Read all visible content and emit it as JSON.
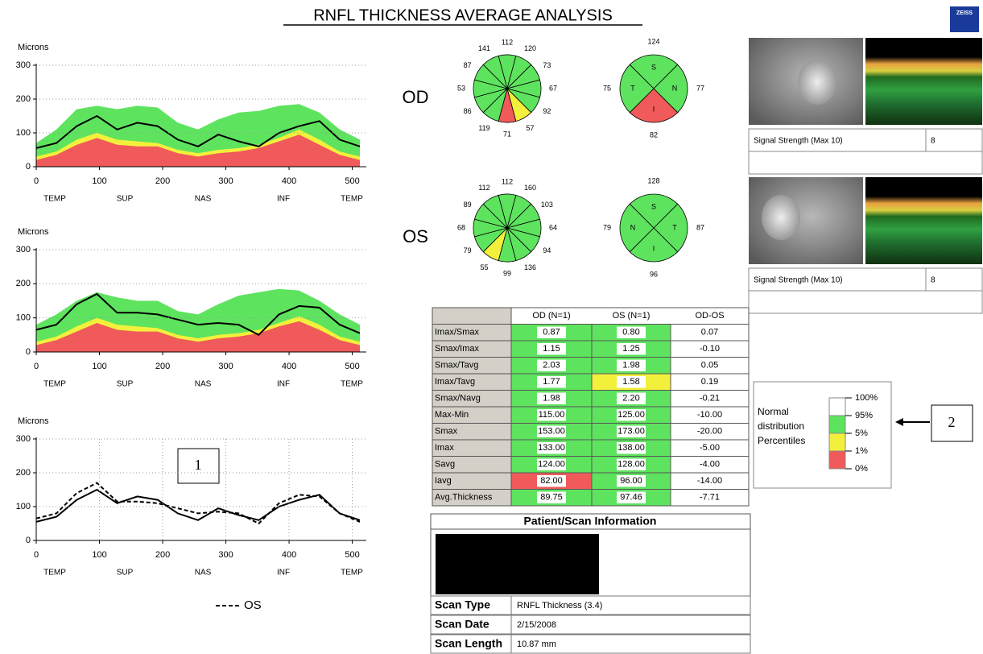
{
  "title": "RNFL THICKNESS AVERAGE ANALYSIS",
  "logo": "ZEISS",
  "chart_data": [
    {
      "type": "line",
      "y_axis_label": "Microns",
      "x": [
        0,
        32,
        64,
        96,
        128,
        160,
        192,
        224,
        256,
        288,
        320,
        352,
        384,
        416,
        448,
        480,
        512
      ],
      "xlim": [
        0,
        512
      ],
      "xticks": [
        0,
        100,
        200,
        300,
        400,
        500
      ],
      "ylim": [
        0,
        300
      ],
      "yticks": [
        0,
        100,
        200,
        300
      ],
      "grid": true,
      "x_regions": [
        "TEMP",
        "SUP",
        "NAS",
        "INF",
        "TEMP"
      ],
      "series": [
        {
          "color": "#5ee35e",
          "area": true,
          "values": [
            70,
            110,
            170,
            180,
            170,
            180,
            175,
            130,
            110,
            140,
            160,
            165,
            180,
            185,
            160,
            110,
            80
          ]
        },
        {
          "color": "#f3f03c",
          "area": true,
          "values": [
            30,
            45,
            80,
            100,
            80,
            75,
            70,
            50,
            40,
            50,
            55,
            65,
            85,
            110,
            80,
            45,
            30
          ]
        },
        {
          "color": "#f05a5a",
          "area": true,
          "values": [
            20,
            35,
            65,
            85,
            65,
            60,
            60,
            40,
            30,
            40,
            45,
            55,
            75,
            95,
            65,
            35,
            20
          ]
        },
        {
          "color": "#000000",
          "values": [
            55,
            70,
            120,
            150,
            110,
            130,
            120,
            80,
            60,
            95,
            75,
            60,
            100,
            120,
            135,
            80,
            60
          ]
        }
      ]
    },
    {
      "type": "line",
      "y_axis_label": "Microns",
      "x": [
        0,
        32,
        64,
        96,
        128,
        160,
        192,
        224,
        256,
        288,
        320,
        352,
        384,
        416,
        448,
        480,
        512
      ],
      "xlim": [
        0,
        512
      ],
      "xticks": [
        0,
        100,
        200,
        300,
        400,
        500
      ],
      "ylim": [
        0,
        300
      ],
      "yticks": [
        0,
        100,
        200,
        300
      ],
      "grid": true,
      "x_regions": [
        "TEMP",
        "SUP",
        "NAS",
        "INF",
        "TEMP"
      ],
      "series": [
        {
          "color": "#5ee35e",
          "area": true,
          "values": [
            80,
            110,
            150,
            175,
            160,
            150,
            150,
            120,
            110,
            140,
            165,
            175,
            185,
            180,
            150,
            110,
            80
          ]
        },
        {
          "color": "#f3f03c",
          "area": true,
          "values": [
            30,
            45,
            75,
            100,
            80,
            75,
            70,
            50,
            40,
            50,
            55,
            65,
            85,
            105,
            80,
            45,
            30
          ]
        },
        {
          "color": "#f05a5a",
          "area": true,
          "values": [
            20,
            35,
            60,
            85,
            65,
            60,
            60,
            40,
            30,
            40,
            45,
            55,
            75,
            90,
            65,
            35,
            20
          ]
        },
        {
          "color": "#000000",
          "values": [
            65,
            80,
            140,
            170,
            115,
            115,
            110,
            95,
            80,
            85,
            80,
            50,
            110,
            135,
            130,
            80,
            55
          ]
        }
      ]
    },
    {
      "type": "line",
      "y_axis_label": "Microns",
      "x": [
        0,
        32,
        64,
        96,
        128,
        160,
        192,
        224,
        256,
        288,
        320,
        352,
        384,
        416,
        448,
        480,
        512
      ],
      "xlim": [
        0,
        512
      ],
      "xticks": [
        0,
        100,
        200,
        300,
        400,
        500
      ],
      "ylim": [
        0,
        300
      ],
      "yticks": [
        0,
        100,
        200,
        300
      ],
      "grid": true,
      "xgrid": true,
      "x_regions": [
        "TEMP",
        "SUP",
        "NAS",
        "INF",
        "TEMP"
      ],
      "series": [
        {
          "color": "#000000",
          "values": [
            55,
            70,
            120,
            150,
            110,
            130,
            120,
            80,
            60,
            95,
            75,
            60,
            100,
            120,
            135,
            80,
            60
          ]
        },
        {
          "name": "OS",
          "color": "#000000",
          "dash": true,
          "values": [
            65,
            80,
            140,
            170,
            115,
            115,
            110,
            95,
            80,
            85,
            80,
            50,
            110,
            135,
            130,
            80,
            55
          ]
        }
      ]
    }
  ],
  "eyes": [
    {
      "label": "OD",
      "clock": {
        "values": [
          112,
          120,
          73,
          67,
          92,
          57,
          71,
          119,
          86,
          53,
          87,
          141
        ],
        "colors": [
          "#5ee35e",
          "#5ee35e",
          "#5ee35e",
          "#5ee35e",
          "#5ee35e",
          "#f3f03c",
          "#f05a5a",
          "#5ee35e",
          "#5ee35e",
          "#5ee35e",
          "#5ee35e",
          "#5ee35e"
        ]
      },
      "quadrants": {
        "letters": [
          "S",
          "N",
          "I",
          "T"
        ],
        "values": [
          124,
          77,
          82,
          75
        ],
        "colors": [
          "#5ee35e",
          "#5ee35e",
          "#f05a5a",
          "#5ee35e"
        ]
      },
      "signal": {
        "label": "Signal Strength (Max 10)",
        "value": "8"
      }
    },
    {
      "label": "OS",
      "clock": {
        "values": [
          112,
          160,
          103,
          64,
          94,
          136,
          99,
          55,
          79,
          68,
          89,
          112
        ],
        "colors": [
          "#5ee35e",
          "#5ee35e",
          "#5ee35e",
          "#5ee35e",
          "#5ee35e",
          "#5ee35e",
          "#5ee35e",
          "#f3f03c",
          "#5ee35e",
          "#5ee35e",
          "#5ee35e",
          "#5ee35e"
        ]
      },
      "quadrants": {
        "letters": [
          "S",
          "T",
          "I",
          "N"
        ],
        "values": [
          128,
          87,
          96,
          79
        ],
        "colors": [
          "#5ee35e",
          "#5ee35e",
          "#5ee35e",
          "#5ee35e"
        ]
      },
      "signal": {
        "label": "Signal Strength (Max 10)",
        "value": "8"
      }
    }
  ],
  "table": {
    "header": [
      "OD (N=1)",
      "OS (N=1)",
      "OD-OS"
    ],
    "rows": [
      [
        "Imax/Smax",
        "0.87",
        "0.80",
        "0.07"
      ],
      [
        "Smax/Imax",
        "1.15",
        "1.25",
        "-0.10"
      ],
      [
        "Smax/Tavg",
        "2.03",
        "1.98",
        "0.05"
      ],
      [
        "Imax/Tavg",
        "1.77",
        "1.58",
        "0.19"
      ],
      [
        "Smax/Navg",
        "1.98",
        "2.20",
        "-0.21"
      ],
      [
        "Max-Min",
        "115.00",
        "125.00",
        "-10.00"
      ],
      [
        "Smax",
        "153.00",
        "173.00",
        "-20.00"
      ],
      [
        "Imax",
        "133.00",
        "138.00",
        "-5.00"
      ],
      [
        "Savg",
        "124.00",
        "128.00",
        "-4.00"
      ],
      [
        "Iavg",
        "82.00",
        "96.00",
        "-14.00"
      ],
      [
        "Avg.Thickness",
        "89.75",
        "97.46",
        "-7.71"
      ]
    ],
    "colors": [
      [
        "#5ee35e",
        "#5ee35e"
      ],
      [
        "#5ee35e",
        "#5ee35e"
      ],
      [
        "#5ee35e",
        "#5ee35e"
      ],
      [
        "#5ee35e",
        "#f3f03c"
      ],
      [
        "#5ee35e",
        "#5ee35e"
      ],
      [
        "#5ee35e",
        "#5ee35e"
      ],
      [
        "#5ee35e",
        "#5ee35e"
      ],
      [
        "#5ee35e",
        "#5ee35e"
      ],
      [
        "#5ee35e",
        "#5ee35e"
      ],
      [
        "#f05a5a",
        "#5ee35e"
      ],
      [
        "#5ee35e",
        "#5ee35e"
      ]
    ]
  },
  "patient_info": {
    "title": "Patient/Scan Information",
    "rows": [
      [
        "Scan Type",
        "RNFL Thickness (3.4)"
      ],
      [
        "Scan Date",
        "2/15/2008"
      ],
      [
        "Scan Length",
        "10.87 mm"
      ]
    ]
  },
  "legend": {
    "lines": [
      "Normal",
      "distribution",
      "Percentiles"
    ],
    "levels": [
      "100%",
      "95%",
      "5%",
      "1%",
      "0%"
    ],
    "colors": [
      "#ffffff",
      "#5ee35e",
      "#f3f03c",
      "#f05a5a"
    ]
  },
  "annotations": [
    "1",
    "2"
  ]
}
